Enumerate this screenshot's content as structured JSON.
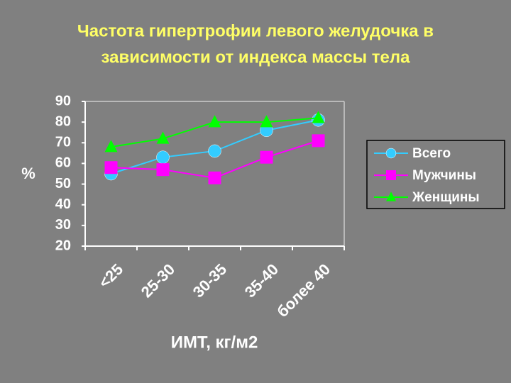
{
  "chart_data": {
    "type": "line",
    "title": [
      "Частота гипертрофии левого желудочка в",
      "зависимости от индекса массы тела"
    ],
    "x_label": "ИМТ, кг/м2",
    "y_label": "%",
    "categories": [
      "<25",
      "25-30",
      "30-35",
      "35-40",
      "более 40"
    ],
    "series": [
      {
        "name": "Всего",
        "color": "#33ccff",
        "marker": "circle",
        "values": [
          55,
          63,
          66,
          76,
          81
        ]
      },
      {
        "name": "Мужчины",
        "color": "#ff00ff",
        "marker": "square",
        "values": [
          58,
          57,
          53,
          63,
          71
        ]
      },
      {
        "name": "Женщины",
        "color": "#00ff00",
        "marker": "triangle",
        "values": [
          68,
          72,
          80,
          80,
          82
        ]
      }
    ],
    "ylim": [
      20,
      90
    ],
    "yticks": [
      20,
      30,
      40,
      50,
      60,
      70,
      80,
      90
    ],
    "grid": false,
    "legend": "right"
  }
}
